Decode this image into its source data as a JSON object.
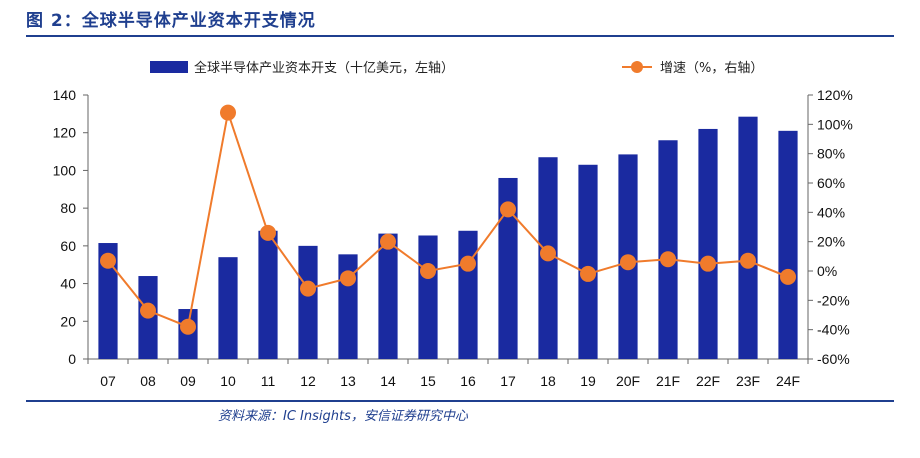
{
  "figure": {
    "title": "图 2：全球半导体产业资本开支情况",
    "source": "资料来源：IC Insights，安信证券研究中心"
  },
  "chart_data": {
    "type": "bar+line",
    "categories": [
      "07",
      "08",
      "09",
      "10",
      "11",
      "12",
      "13",
      "14",
      "15",
      "16",
      "17",
      "18",
      "19",
      "20F",
      "21F",
      "22F",
      "23F",
      "24F"
    ],
    "series": [
      {
        "name": "全球半导体产业资本开支（十亿美元，左轴）",
        "kind": "bar",
        "axis": "left",
        "color": "#1a2aa0",
        "values": [
          61.5,
          44,
          26.5,
          54,
          68,
          60,
          55.5,
          66.5,
          65.5,
          68,
          96,
          107,
          103,
          108.5,
          116,
          122,
          128.5,
          121
        ]
      },
      {
        "name": "增速（%，右轴）",
        "kind": "line",
        "axis": "right",
        "color": "#f07b2c",
        "values": [
          7,
          -27,
          -38,
          108,
          26,
          -12,
          -5,
          20,
          0,
          5,
          42,
          12,
          -2,
          6,
          8,
          5,
          7,
          -4
        ]
      }
    ],
    "y_left": {
      "min": 0,
      "max": 140,
      "ticks": [
        0,
        20,
        40,
        60,
        80,
        100,
        120,
        140
      ]
    },
    "y_right": {
      "min": -60,
      "max": 120,
      "ticks": [
        -60,
        -40,
        -20,
        0,
        20,
        40,
        60,
        80,
        100,
        120
      ],
      "tick_suffix": "%"
    },
    "legend_position": "top",
    "grid": false
  }
}
